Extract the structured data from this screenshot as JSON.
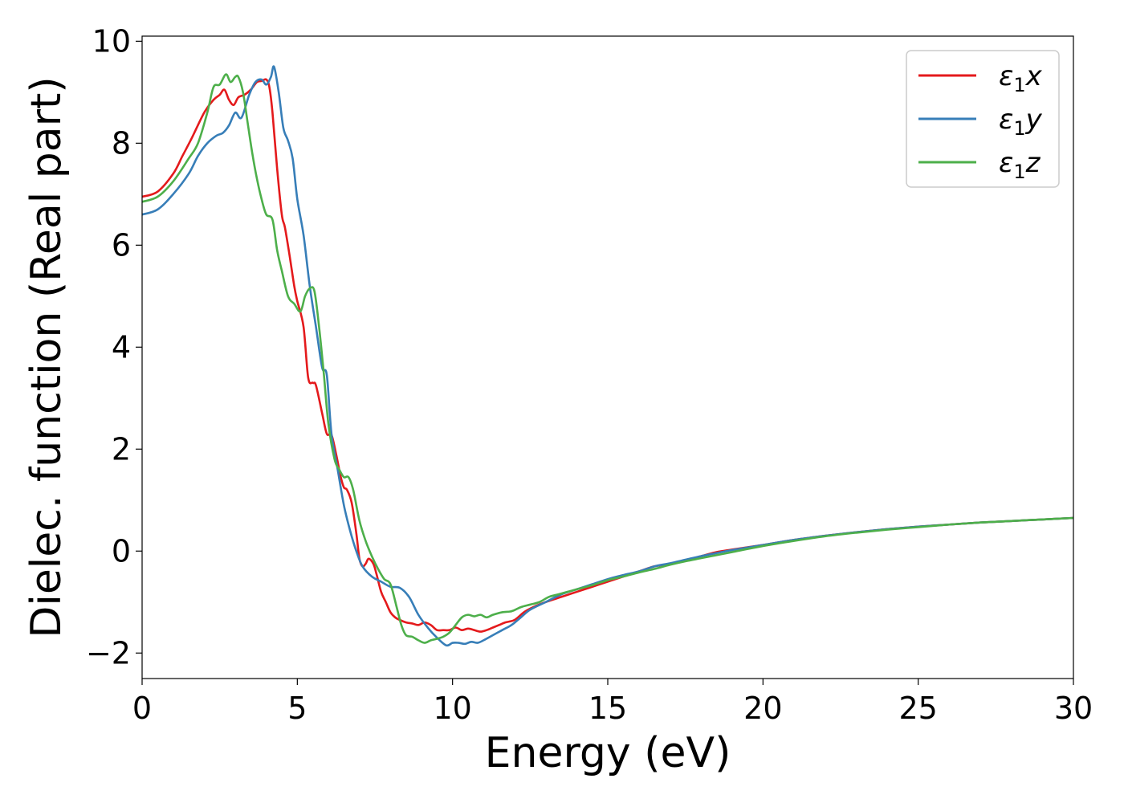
{
  "chart_data": {
    "type": "line",
    "xlabel": "Energy (eV)",
    "ylabel": "Dielec. function (Real part)",
    "xlim": [
      0,
      30
    ],
    "ylim": [
      -2.5,
      10.1
    ],
    "xticks": [
      0,
      5,
      10,
      15,
      20,
      25,
      30
    ],
    "xtick_labels": [
      "0",
      "5",
      "10",
      "15",
      "20",
      "25",
      "30"
    ],
    "yticks": [
      -2,
      0,
      2,
      4,
      6,
      8,
      10
    ],
    "ytick_labels": [
      "−2",
      "0",
      "2",
      "4",
      "6",
      "8",
      "10"
    ],
    "grid": false,
    "legend_position": "top-right",
    "series": [
      {
        "name": "ε₁x",
        "legend": {
          "symbol": "ε",
          "sub": "1",
          "var": "x"
        },
        "color": "#e41a1c",
        "x": [
          0,
          0.5,
          1.0,
          1.3,
          1.6,
          2.0,
          2.3,
          2.5,
          2.65,
          2.8,
          2.95,
          3.1,
          3.3,
          3.5,
          3.7,
          3.85,
          4.0,
          4.1,
          4.2,
          4.35,
          4.5,
          4.6,
          4.75,
          4.9,
          5.0,
          5.2,
          5.35,
          5.5,
          5.6,
          5.8,
          5.95,
          6.1,
          6.25,
          6.4,
          6.5,
          6.6,
          6.75,
          6.9,
          7.0,
          7.1,
          7.2,
          7.3,
          7.45,
          7.55,
          7.7,
          7.85,
          8.0,
          8.15,
          8.3,
          8.5,
          8.7,
          8.9,
          9.1,
          9.3,
          9.5,
          9.7,
          9.9,
          10.1,
          10.3,
          10.5,
          10.7,
          10.9,
          11.1,
          11.3,
          11.5,
          11.7,
          12.0,
          12.3,
          12.6,
          13.0,
          13.5,
          14.0,
          14.5,
          15.0,
          15.5,
          16.0,
          16.5,
          17.0,
          17.5,
          18.0,
          18.5,
          19.0,
          20.0,
          21.0,
          22.0,
          23.0,
          24.0,
          25.0,
          26.0,
          27.0,
          28.0,
          29.0,
          30.0
        ],
        "values": [
          6.95,
          7.05,
          7.4,
          7.75,
          8.1,
          8.6,
          8.85,
          8.95,
          9.05,
          8.85,
          8.75,
          8.9,
          8.95,
          9.05,
          9.2,
          9.22,
          9.25,
          9.1,
          8.6,
          7.5,
          6.6,
          6.35,
          5.8,
          5.2,
          4.9,
          4.4,
          3.4,
          3.3,
          3.25,
          2.7,
          2.3,
          2.28,
          1.9,
          1.45,
          1.25,
          1.2,
          0.95,
          0.35,
          -0.15,
          -0.3,
          -0.25,
          -0.15,
          -0.25,
          -0.45,
          -0.8,
          -1.0,
          -1.2,
          -1.3,
          -1.35,
          -1.4,
          -1.42,
          -1.45,
          -1.4,
          -1.45,
          -1.55,
          -1.55,
          -1.55,
          -1.5,
          -1.55,
          -1.52,
          -1.55,
          -1.58,
          -1.55,
          -1.5,
          -1.45,
          -1.4,
          -1.35,
          -1.2,
          -1.1,
          -1.0,
          -0.9,
          -0.8,
          -0.7,
          -0.6,
          -0.5,
          -0.4,
          -0.3,
          -0.25,
          -0.18,
          -0.1,
          -0.02,
          0.03,
          0.12,
          0.22,
          0.3,
          0.37,
          0.43,
          0.48,
          0.52,
          0.56,
          0.59,
          0.62,
          0.65
        ]
      },
      {
        "name": "ε₁y",
        "legend": {
          "symbol": "ε",
          "sub": "1",
          "var": "y"
        },
        "color": "#377eb8",
        "x": [
          0,
          0.5,
          1.0,
          1.5,
          1.8,
          2.1,
          2.4,
          2.6,
          2.8,
          3.0,
          3.2,
          3.45,
          3.65,
          3.85,
          4.0,
          4.15,
          4.25,
          4.4,
          4.55,
          4.7,
          4.85,
          5.0,
          5.2,
          5.4,
          5.6,
          5.8,
          5.95,
          6.1,
          6.3,
          6.5,
          6.7,
          6.9,
          7.1,
          7.4,
          7.7,
          8.0,
          8.3,
          8.6,
          8.9,
          9.2,
          9.5,
          9.8,
          10.0,
          10.2,
          10.4,
          10.6,
          10.8,
          11.0,
          11.3,
          11.6,
          11.9,
          12.2,
          12.5,
          13.0,
          13.5,
          14.0,
          14.5,
          15.0,
          15.5,
          16.0,
          16.5,
          17.0,
          17.5,
          18.0,
          18.5,
          19.0,
          20.0,
          21.0,
          22.0,
          23.0,
          24.0,
          25.0,
          26.0,
          27.0,
          28.0,
          29.0,
          30.0
        ],
        "values": [
          6.6,
          6.7,
          7.0,
          7.4,
          7.75,
          8.0,
          8.15,
          8.2,
          8.35,
          8.6,
          8.5,
          8.95,
          9.2,
          9.25,
          9.15,
          9.3,
          9.5,
          9.0,
          8.3,
          8.05,
          7.7,
          6.9,
          6.2,
          5.2,
          4.4,
          3.6,
          3.45,
          2.3,
          1.6,
          0.9,
          0.4,
          0.0,
          -0.3,
          -0.5,
          -0.6,
          -0.7,
          -0.72,
          -0.9,
          -1.25,
          -1.5,
          -1.7,
          -1.85,
          -1.8,
          -1.8,
          -1.82,
          -1.78,
          -1.8,
          -1.75,
          -1.65,
          -1.55,
          -1.45,
          -1.3,
          -1.15,
          -1.0,
          -0.85,
          -0.75,
          -0.65,
          -0.55,
          -0.47,
          -0.4,
          -0.3,
          -0.24,
          -0.17,
          -0.1,
          -0.04,
          0.02,
          0.12,
          0.22,
          0.3,
          0.37,
          0.43,
          0.48,
          0.52,
          0.56,
          0.59,
          0.62,
          0.65
        ]
      },
      {
        "name": "ε₁z",
        "legend": {
          "symbol": "ε",
          "sub": "1",
          "var": "z"
        },
        "color": "#4daf4a",
        "x": [
          0,
          0.5,
          1.0,
          1.5,
          1.8,
          2.1,
          2.3,
          2.5,
          2.7,
          2.85,
          3.0,
          3.1,
          3.25,
          3.4,
          3.55,
          3.7,
          3.85,
          4.0,
          4.2,
          4.35,
          4.5,
          4.7,
          4.9,
          5.1,
          5.25,
          5.4,
          5.55,
          5.7,
          5.85,
          6.0,
          6.2,
          6.35,
          6.5,
          6.65,
          6.8,
          7.0,
          7.2,
          7.4,
          7.6,
          7.8,
          8.0,
          8.2,
          8.35,
          8.5,
          8.7,
          8.9,
          9.1,
          9.3,
          9.5,
          9.7,
          9.9,
          10.1,
          10.3,
          10.5,
          10.7,
          10.9,
          11.1,
          11.3,
          11.6,
          11.9,
          12.2,
          12.5,
          12.8,
          13.1,
          13.4,
          13.7,
          14.0,
          14.5,
          15.0,
          15.5,
          16.0,
          16.5,
          17.0,
          17.5,
          18.0,
          18.5,
          19.0,
          20.0,
          21.0,
          22.0,
          23.0,
          24.0,
          25.0,
          26.0,
          27.0,
          28.0,
          29.0,
          30.0
        ],
        "values": [
          6.85,
          6.95,
          7.25,
          7.7,
          8.0,
          8.6,
          9.1,
          9.15,
          9.35,
          9.2,
          9.3,
          9.3,
          9.0,
          8.4,
          7.8,
          7.3,
          6.9,
          6.6,
          6.5,
          5.9,
          5.5,
          5.0,
          4.85,
          4.7,
          5.0,
          5.15,
          5.1,
          4.4,
          3.5,
          2.5,
          1.8,
          1.6,
          1.45,
          1.45,
          1.2,
          0.6,
          0.2,
          -0.1,
          -0.35,
          -0.55,
          -0.65,
          -1.1,
          -1.45,
          -1.65,
          -1.68,
          -1.75,
          -1.8,
          -1.75,
          -1.72,
          -1.68,
          -1.6,
          -1.45,
          -1.3,
          -1.25,
          -1.28,
          -1.25,
          -1.3,
          -1.25,
          -1.2,
          -1.18,
          -1.1,
          -1.05,
          -1.0,
          -0.9,
          -0.85,
          -0.8,
          -0.75,
          -0.67,
          -0.57,
          -0.5,
          -0.42,
          -0.35,
          -0.27,
          -0.2,
          -0.14,
          -0.08,
          -0.02,
          0.1,
          0.2,
          0.29,
          0.36,
          0.42,
          0.47,
          0.52,
          0.56,
          0.59,
          0.62,
          0.65
        ]
      }
    ]
  }
}
